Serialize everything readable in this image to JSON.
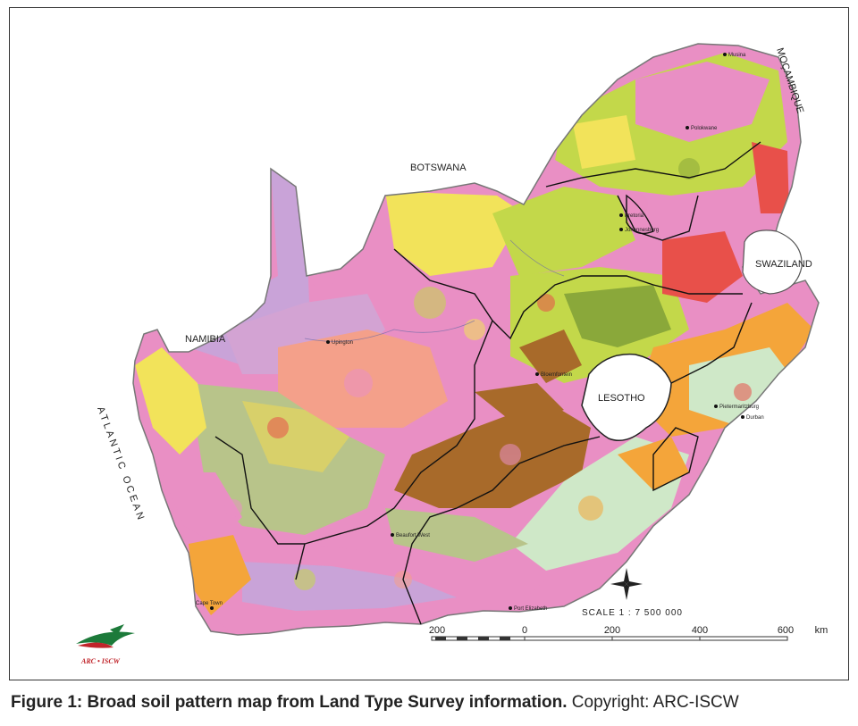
{
  "map": {
    "labels": {
      "botswana": "BOTSWANA",
      "namibia": "NAMIBIA",
      "mocambique": "MOÇAMBIQUE",
      "swaziland": "SWAZILAND",
      "lesotho": "LESOTHO",
      "ocean": "ATLANTIC OCEAN"
    },
    "cities": [
      "Polokwane",
      "Pretoria",
      "Johannesburg",
      "Upington",
      "Bloemfontein",
      "Pietermaritzburg",
      "Durban",
      "Beaufort West",
      "Port Elizabeth",
      "Cape Town",
      "Musina"
    ],
    "scale": {
      "label": "SCALE 1 : 7 500 000",
      "ticks": [
        "200",
        "0",
        "200",
        "400",
        "600"
      ],
      "unit": "km"
    },
    "logo_text": "ARC • ISCW",
    "colors": {
      "pink": "#e98fc4",
      "lilac": "#c9a3d8",
      "yellow": "#f2e35a",
      "lime": "#c3d84a",
      "salmon": "#f4a08a",
      "brown": "#a86a2a",
      "olive": "#b8c48a",
      "mint": "#cfe8c8",
      "orange": "#f4a53a",
      "red": "#e8504a"
    }
  },
  "caption": {
    "bold": "Figure 1: Broad soil pattern map from Land Type Survey information.",
    "normal": "Copyright: ARC-ISCW"
  }
}
